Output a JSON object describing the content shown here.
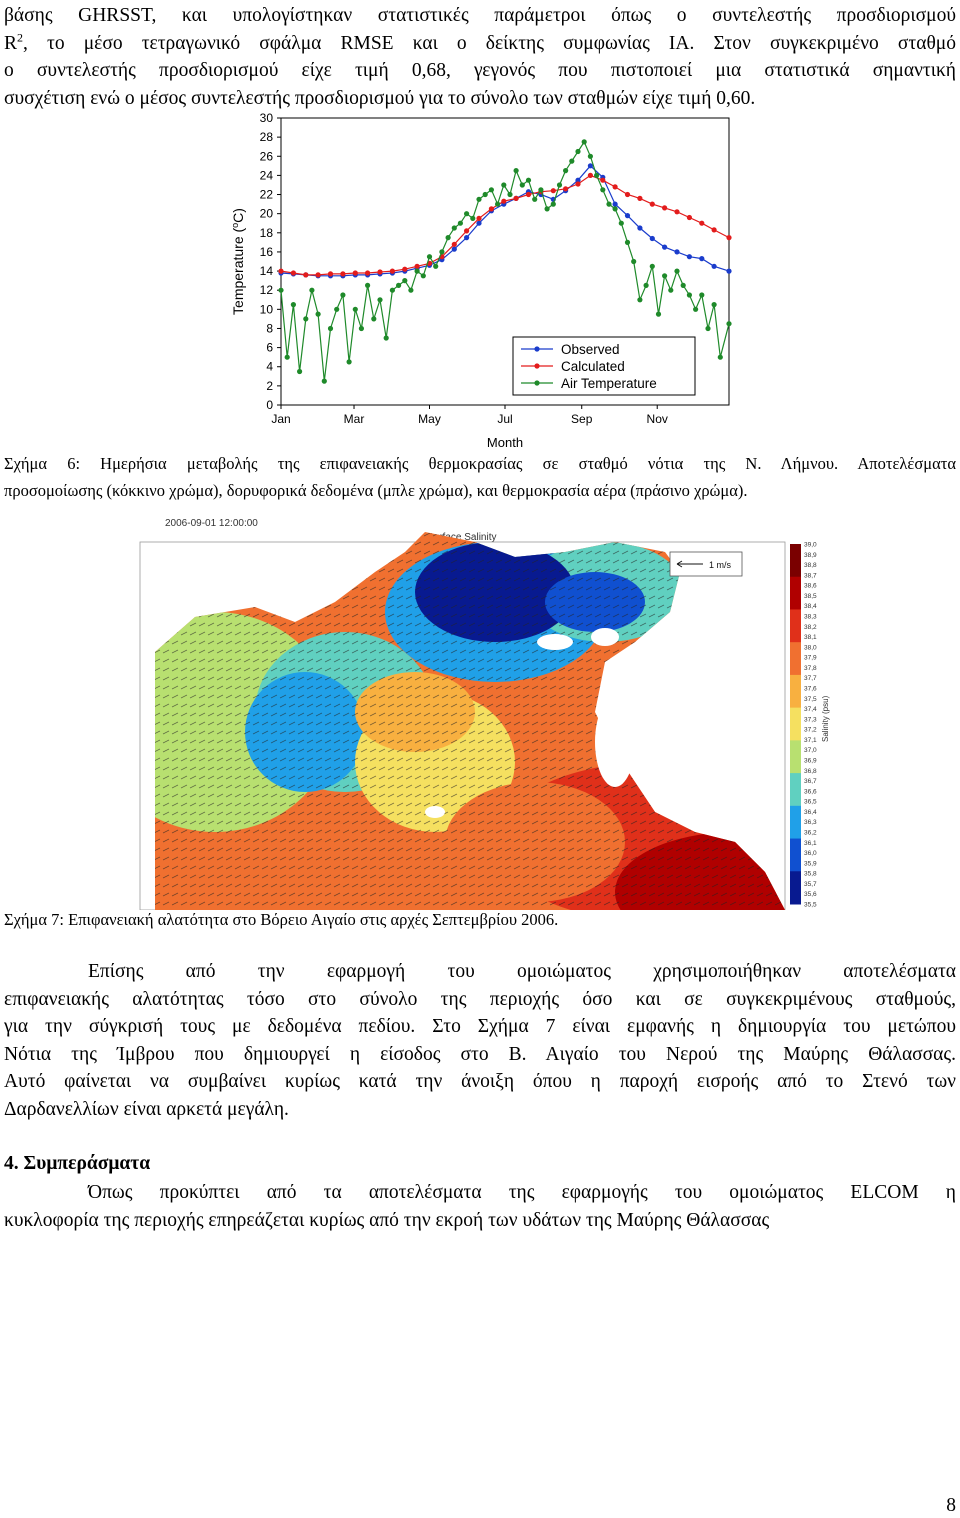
{
  "intro": {
    "line1": "βάσης GHRSST, και υπολογίστηκαν στατιστικές παράμετροι όπως ο συντελεστής προσδιορισμού",
    "line2_a": "R",
    "line2_sup": "2",
    "line2_b": ", το μέσο τετραγωνικό σφάλμα RMSE και ο δείκτης συμφωνίας IA. Στον συγκεκριμένο σταθμό",
    "line3": "ο συντελεστής προσδιορισμού είχε τιμή 0,68, γεγονός που πιστοποιεί μια στατιστικά σημαντική",
    "line4": "συσχέτιση ενώ ο μέσος συντελεστής προσδιορισμού για το σύνολο των σταθμών είχε τιμή 0,60."
  },
  "chart_data": {
    "type": "line",
    "xlabel": "Month",
    "ylabel": "Temperature (°C)",
    "ylabel_sup": "o",
    "ylabel_pre": "Temperature (",
    "ylabel_post": "C)",
    "x_tick_labels": [
      "Jan",
      "Mar",
      "May",
      "Jul",
      "Sep",
      "Nov"
    ],
    "x_tick_days": [
      0,
      59,
      120,
      181,
      243,
      304
    ],
    "xlim": [
      0,
      362
    ],
    "ylim": [
      0,
      30
    ],
    "y_ticks": [
      0,
      2,
      4,
      6,
      8,
      10,
      12,
      14,
      16,
      18,
      20,
      22,
      24,
      26,
      28,
      30
    ],
    "legend_position": "bottom-right",
    "series": [
      {
        "name": "Observed",
        "color": "#1a3ccc",
        "x": [
          0,
          10,
          20,
          30,
          40,
          50,
          60,
          70,
          80,
          90,
          100,
          110,
          120,
          130,
          140,
          150,
          160,
          170,
          180,
          190,
          200,
          210,
          220,
          230,
          240,
          250,
          260,
          270,
          280,
          290,
          300,
          310,
          320,
          330,
          340,
          350,
          362
        ],
        "y": [
          13.8,
          13.7,
          13.6,
          13.5,
          13.5,
          13.5,
          13.6,
          13.6,
          13.7,
          13.8,
          14.0,
          14.3,
          14.6,
          15.2,
          16.3,
          17.5,
          19.0,
          20.3,
          21.0,
          21.6,
          22.3,
          22.0,
          21.5,
          22.4,
          23.5,
          25.0,
          23.8,
          21.0,
          19.8,
          18.5,
          17.4,
          16.5,
          16.0,
          15.5,
          15.3,
          14.5,
          14.0
        ]
      },
      {
        "name": "Calculated",
        "color": "#e31c1c",
        "x": [
          0,
          10,
          20,
          30,
          40,
          50,
          60,
          70,
          80,
          90,
          100,
          110,
          120,
          130,
          140,
          150,
          160,
          170,
          180,
          190,
          200,
          210,
          220,
          230,
          240,
          250,
          260,
          270,
          280,
          290,
          300,
          310,
          320,
          330,
          340,
          350,
          362
        ],
        "y": [
          14.0,
          13.8,
          13.6,
          13.6,
          13.7,
          13.7,
          13.8,
          13.8,
          13.9,
          14.0,
          14.2,
          14.5,
          14.8,
          15.5,
          16.8,
          18.2,
          19.5,
          20.5,
          21.3,
          21.6,
          22.0,
          22.3,
          22.4,
          22.6,
          23.1,
          24.0,
          23.5,
          22.8,
          22.0,
          21.6,
          21.0,
          20.6,
          20.2,
          19.6,
          19.0,
          18.3,
          17.5
        ]
      },
      {
        "name": "Air Temperature",
        "color": "#1f8a2a",
        "x": [
          0,
          5,
          10,
          15,
          20,
          25,
          30,
          35,
          40,
          45,
          50,
          55,
          60,
          65,
          70,
          75,
          80,
          85,
          90,
          95,
          100,
          105,
          110,
          115,
          120,
          125,
          130,
          135,
          140,
          145,
          150,
          155,
          160,
          165,
          170,
          175,
          180,
          185,
          190,
          195,
          200,
          205,
          210,
          215,
          220,
          225,
          230,
          235,
          240,
          245,
          250,
          255,
          260,
          265,
          270,
          275,
          280,
          285,
          290,
          295,
          300,
          305,
          310,
          315,
          320,
          325,
          330,
          335,
          340,
          345,
          350,
          355,
          362
        ],
        "y": [
          12.0,
          5.0,
          10.5,
          3.5,
          9.0,
          12.0,
          9.5,
          2.5,
          8.0,
          10.0,
          11.5,
          4.5,
          10.0,
          8.0,
          12.5,
          9.0,
          11.0,
          7.0,
          12.0,
          12.5,
          13.0,
          12.0,
          14.0,
          13.5,
          15.5,
          14.5,
          16.0,
          17.5,
          18.5,
          19.0,
          20.0,
          19.5,
          21.5,
          22.0,
          22.5,
          21.0,
          23.0,
          22.0,
          24.5,
          23.0,
          23.5,
          21.5,
          22.5,
          20.5,
          21.0,
          23.0,
          24.5,
          25.5,
          26.5,
          27.5,
          26.0,
          24.0,
          22.5,
          21.0,
          20.5,
          19.0,
          17.0,
          15.0,
          11.0,
          12.5,
          14.5,
          9.5,
          13.5,
          12.0,
          14.0,
          12.5,
          11.5,
          10.0,
          11.5,
          8.0,
          10.5,
          5.0,
          8.5
        ]
      }
    ]
  },
  "fig6": {
    "caption_line1": "Σχήμα 6: Ημερήσια μεταβολής της επιφανειακής θερμοκρασίας σε σταθμό νότια της Ν. Λήμνου. Αποτελέσματα",
    "caption_line2": "προσομοίωσης (κόκκινο χρώμα), δορυφορικά δεδομένα (μπλε χρώμα), και θερμοκρασία αέρα (πράσινο χρώμα)."
  },
  "fig7": {
    "timestamp": "2006-09-01 12:00:00",
    "title": "Surface Salinity",
    "scale_label": "1 m/s",
    "colorbar_label": "Salinity (psu)",
    "colorbar_ticks": [
      "39,0",
      "38,9",
      "38,8",
      "38,7",
      "38,6",
      "38,5",
      "38,4",
      "38,3",
      "38,2",
      "38,1",
      "38,0",
      "37,9",
      "37,8",
      "37,7",
      "37,6",
      "37,5",
      "37,4",
      "37,3",
      "37,2",
      "37,1",
      "37,0",
      "36,9",
      "36,8",
      "36,7",
      "36,6",
      "36,5",
      "36,4",
      "36,3",
      "36,2",
      "36,1",
      "36,0",
      "35,9",
      "35,8",
      "35,7",
      "35,6",
      "35,5"
    ],
    "colorbar_colors": [
      "#7a0000",
      "#b00000",
      "#e0301a",
      "#f07030",
      "#f8b040",
      "#f5e060",
      "#b8e070",
      "#60d0c0",
      "#20a0e8",
      "#1050d0",
      "#081a90"
    ],
    "caption": "Σχήμα 7: Επιφανειακή αλατότητα στο Βόρειο Αιγαίο στις αρχές Σεπτεμβρίου 2006."
  },
  "body2": {
    "line1": "Επίσης από την εφαρμογή του ομοιώματος χρησιμοποιήθηκαν αποτελέσματα",
    "line2": "επιφανειακής αλατότητας τόσο στο σύνολο της περιοχής όσο και σε συγκεκριμένους σταθμούς,",
    "line3": "για την σύγκρισή τους με δεδομένα πεδίου. Στο Σχήμα 7 είναι εμφανής η δημιουργία του μετώπου",
    "line4": "Νότια της Ίμβρου που δημιουργεί η είσοδος στο Β. Αιγαίο του Νερού της Μαύρης Θάλασσας.",
    "line5": "Αυτό φαίνεται να συμβαίνει κυρίως κατά την άνοιξη όπου η παροχή εισροής από το Στενό των",
    "line6": "Δαρδανελλίων είναι αρκετά μεγάλη."
  },
  "section4": {
    "heading": "4. Συμπεράσματα",
    "line1": "Όπως προκύπτει από τα αποτελέσματα της εφαρμογής του ομοιώματος ELCOM η",
    "line2": "κυκλοφορία της περιοχής επηρεάζεται κυρίως από την εκροή των υδάτων της Μαύρης Θάλασσας"
  },
  "page_number": "8"
}
